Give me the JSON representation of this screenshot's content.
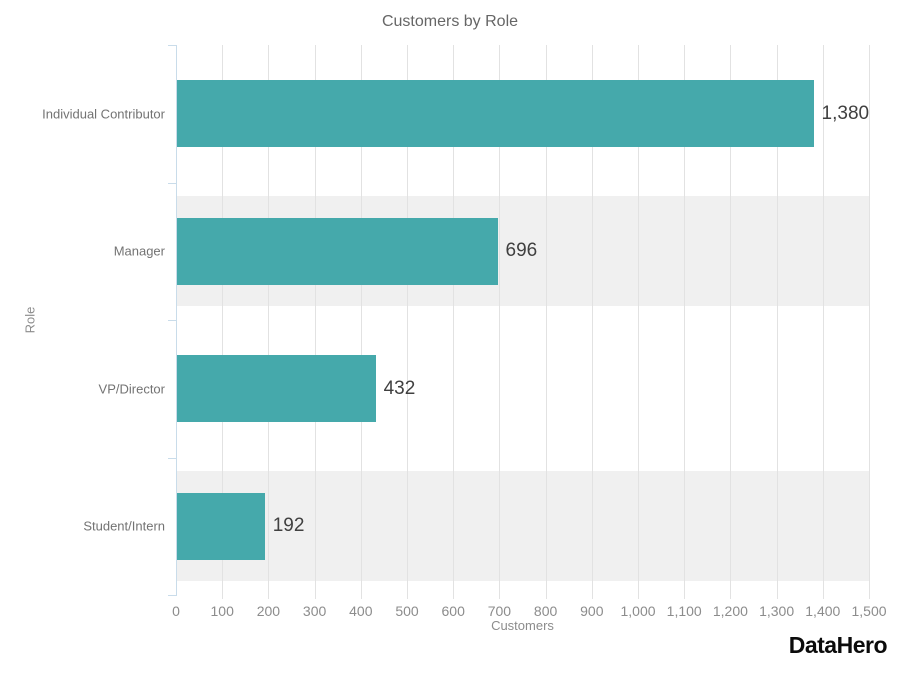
{
  "chart_data": {
    "type": "bar",
    "orientation": "horizontal",
    "title": "Customers by Role",
    "xlabel": "Customers",
    "ylabel": "Role",
    "categories": [
      "Individual Contributor",
      "Manager",
      "VP/Director",
      "Student/Intern"
    ],
    "values": [
      1380,
      696,
      432,
      192
    ],
    "value_labels": [
      "1,380",
      "696",
      "432",
      "192"
    ],
    "xlim": [
      0,
      1500
    ],
    "xtick_step": 100,
    "xtick_labels": [
      "0",
      "100",
      "200",
      "300",
      "400",
      "500",
      "600",
      "700",
      "800",
      "900",
      "1,000",
      "1,100",
      "1,200",
      "1,300",
      "1,400",
      "1,500"
    ],
    "grid": true,
    "legend_position": "none",
    "alternating_row_bands": true,
    "colors": {
      "bar": "#45a9ab",
      "row_band": "#f0f0f0",
      "gridline": "#e2e2e2",
      "axis_line": "#c9dcea",
      "title_text": "#666666",
      "tick_text": "#8c8c8c",
      "category_text": "#737373",
      "value_text": "#404040"
    }
  },
  "branding": {
    "logo_text": "DataHero",
    "logo_color": "#0b0b0b"
  }
}
